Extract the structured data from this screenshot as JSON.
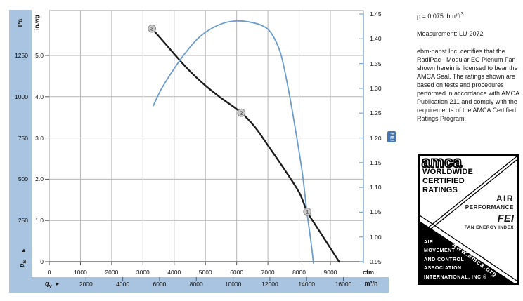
{
  "axes": {
    "pa_unit": "Pa",
    "inwg_unit": "in.wg",
    "pressure_arrow": "▲",
    "pressure_symbol": "p",
    "pressure_sub": "fs",
    "flow_symbol": "q",
    "flow_sub": "v",
    "flow_arrow": "►",
    "cfm_unit": "cfm",
    "m3h_unit": "m³/h",
    "fei_label": "FEI"
  },
  "chart_data": {
    "type": "line",
    "title": "",
    "x_axis": {
      "unit_primary": "cfm",
      "ticks_cfm": [
        "0",
        "1000",
        "2000",
        "3000",
        "4000",
        "5000",
        "6000",
        "7000",
        "8000",
        "9000"
      ],
      "unit_secondary": "m³/h",
      "ticks_m3h": [
        "2000",
        "4000",
        "6000",
        "8000",
        "10000",
        "12000",
        "14000",
        "16000"
      ],
      "xlim_cfm": [
        0,
        10060
      ]
    },
    "y_axis_left": {
      "units": [
        "Pa",
        "in.wg"
      ],
      "ticks_pa": [
        "1250",
        "1000",
        "750",
        "500",
        "250"
      ],
      "ticks_inwg": [
        "5.0",
        "4.0",
        "3.0",
        "2.0",
        "1.0",
        "0"
      ],
      "ylim_inwg": [
        0,
        6.1
      ]
    },
    "y_axis_right": {
      "label": "FEI",
      "ticks": [
        "1.45",
        "1.40",
        "1.35",
        "1.30",
        "1.25",
        "1.20",
        "1.15",
        "1.10",
        "1.05",
        "1.00",
        "0.95"
      ],
      "ylim": [
        0.95,
        1.45
      ]
    },
    "grid": true,
    "series": [
      {
        "name": "static-pressure-curve",
        "color": "#1c1c1c",
        "y_scale": "inwg",
        "points": [
          [
            3290,
            5.65
          ],
          [
            3700,
            5.3
          ],
          [
            4100,
            4.95
          ],
          [
            4500,
            4.62
          ],
          [
            5000,
            4.27
          ],
          [
            5500,
            3.97
          ],
          [
            6150,
            3.61
          ],
          [
            6600,
            3.25
          ],
          [
            7000,
            2.82
          ],
          [
            7500,
            2.27
          ],
          [
            8000,
            1.68
          ],
          [
            8260,
            1.21
          ],
          [
            8600,
            0.8
          ],
          [
            9000,
            0.33
          ],
          [
            9280,
            0.0
          ]
        ]
      },
      {
        "name": "fei-curve",
        "color": "#6b9ccb",
        "y_scale": "fei",
        "points": [
          [
            3330,
            1.265
          ],
          [
            3600,
            1.3
          ],
          [
            4000,
            1.34
          ],
          [
            4400,
            1.375
          ],
          [
            4800,
            1.403
          ],
          [
            5200,
            1.421
          ],
          [
            5600,
            1.432
          ],
          [
            6000,
            1.436
          ],
          [
            6400,
            1.434
          ],
          [
            6800,
            1.427
          ],
          [
            7100,
            1.412
          ],
          [
            7400,
            1.372
          ],
          [
            7650,
            1.3
          ],
          [
            7900,
            1.21
          ],
          [
            8100,
            1.13
          ],
          [
            8260,
            1.045
          ],
          [
            8380,
            0.99
          ],
          [
            8460,
            0.947
          ]
        ]
      }
    ],
    "markers": [
      {
        "label": "3",
        "cfm": 3290,
        "inwg": 5.65
      },
      {
        "label": "2",
        "cfm": 6150,
        "inwg": 3.61
      },
      {
        "label": "1",
        "cfm": 8260,
        "inwg": 1.21
      }
    ]
  },
  "annotations": {
    "density": "ρ = 0.075 lbm/ft",
    "density_sup": "3",
    "measurement": "Measurement: LU-2072",
    "certification": "ebm-papst Inc. certifies that the RadiPac - Modular EC Plenum Fan shown herein is licensed to bear the AMCA Seal. The ratings shown are based on tests and procedures performed in accordance with AMCA Publication 211 and comply with the requirements of the AMCA Certified Ratings Program."
  },
  "seal": {
    "logo": "amca",
    "worldwide": "WORLDWIDE",
    "certified": "CERTIFIED",
    "ratings": "RATINGS",
    "air": "AIR",
    "performance": "PERFORMANCE",
    "fei": "FEI",
    "fei_sub": "FAN ENERGY INDEX",
    "org_lines": [
      "AIR",
      "MOVEMENT",
      "AND CONTROL",
      "ASSOCIATION",
      "INTERNATIONAL, INC.®"
    ],
    "website": "www.amca.org"
  }
}
